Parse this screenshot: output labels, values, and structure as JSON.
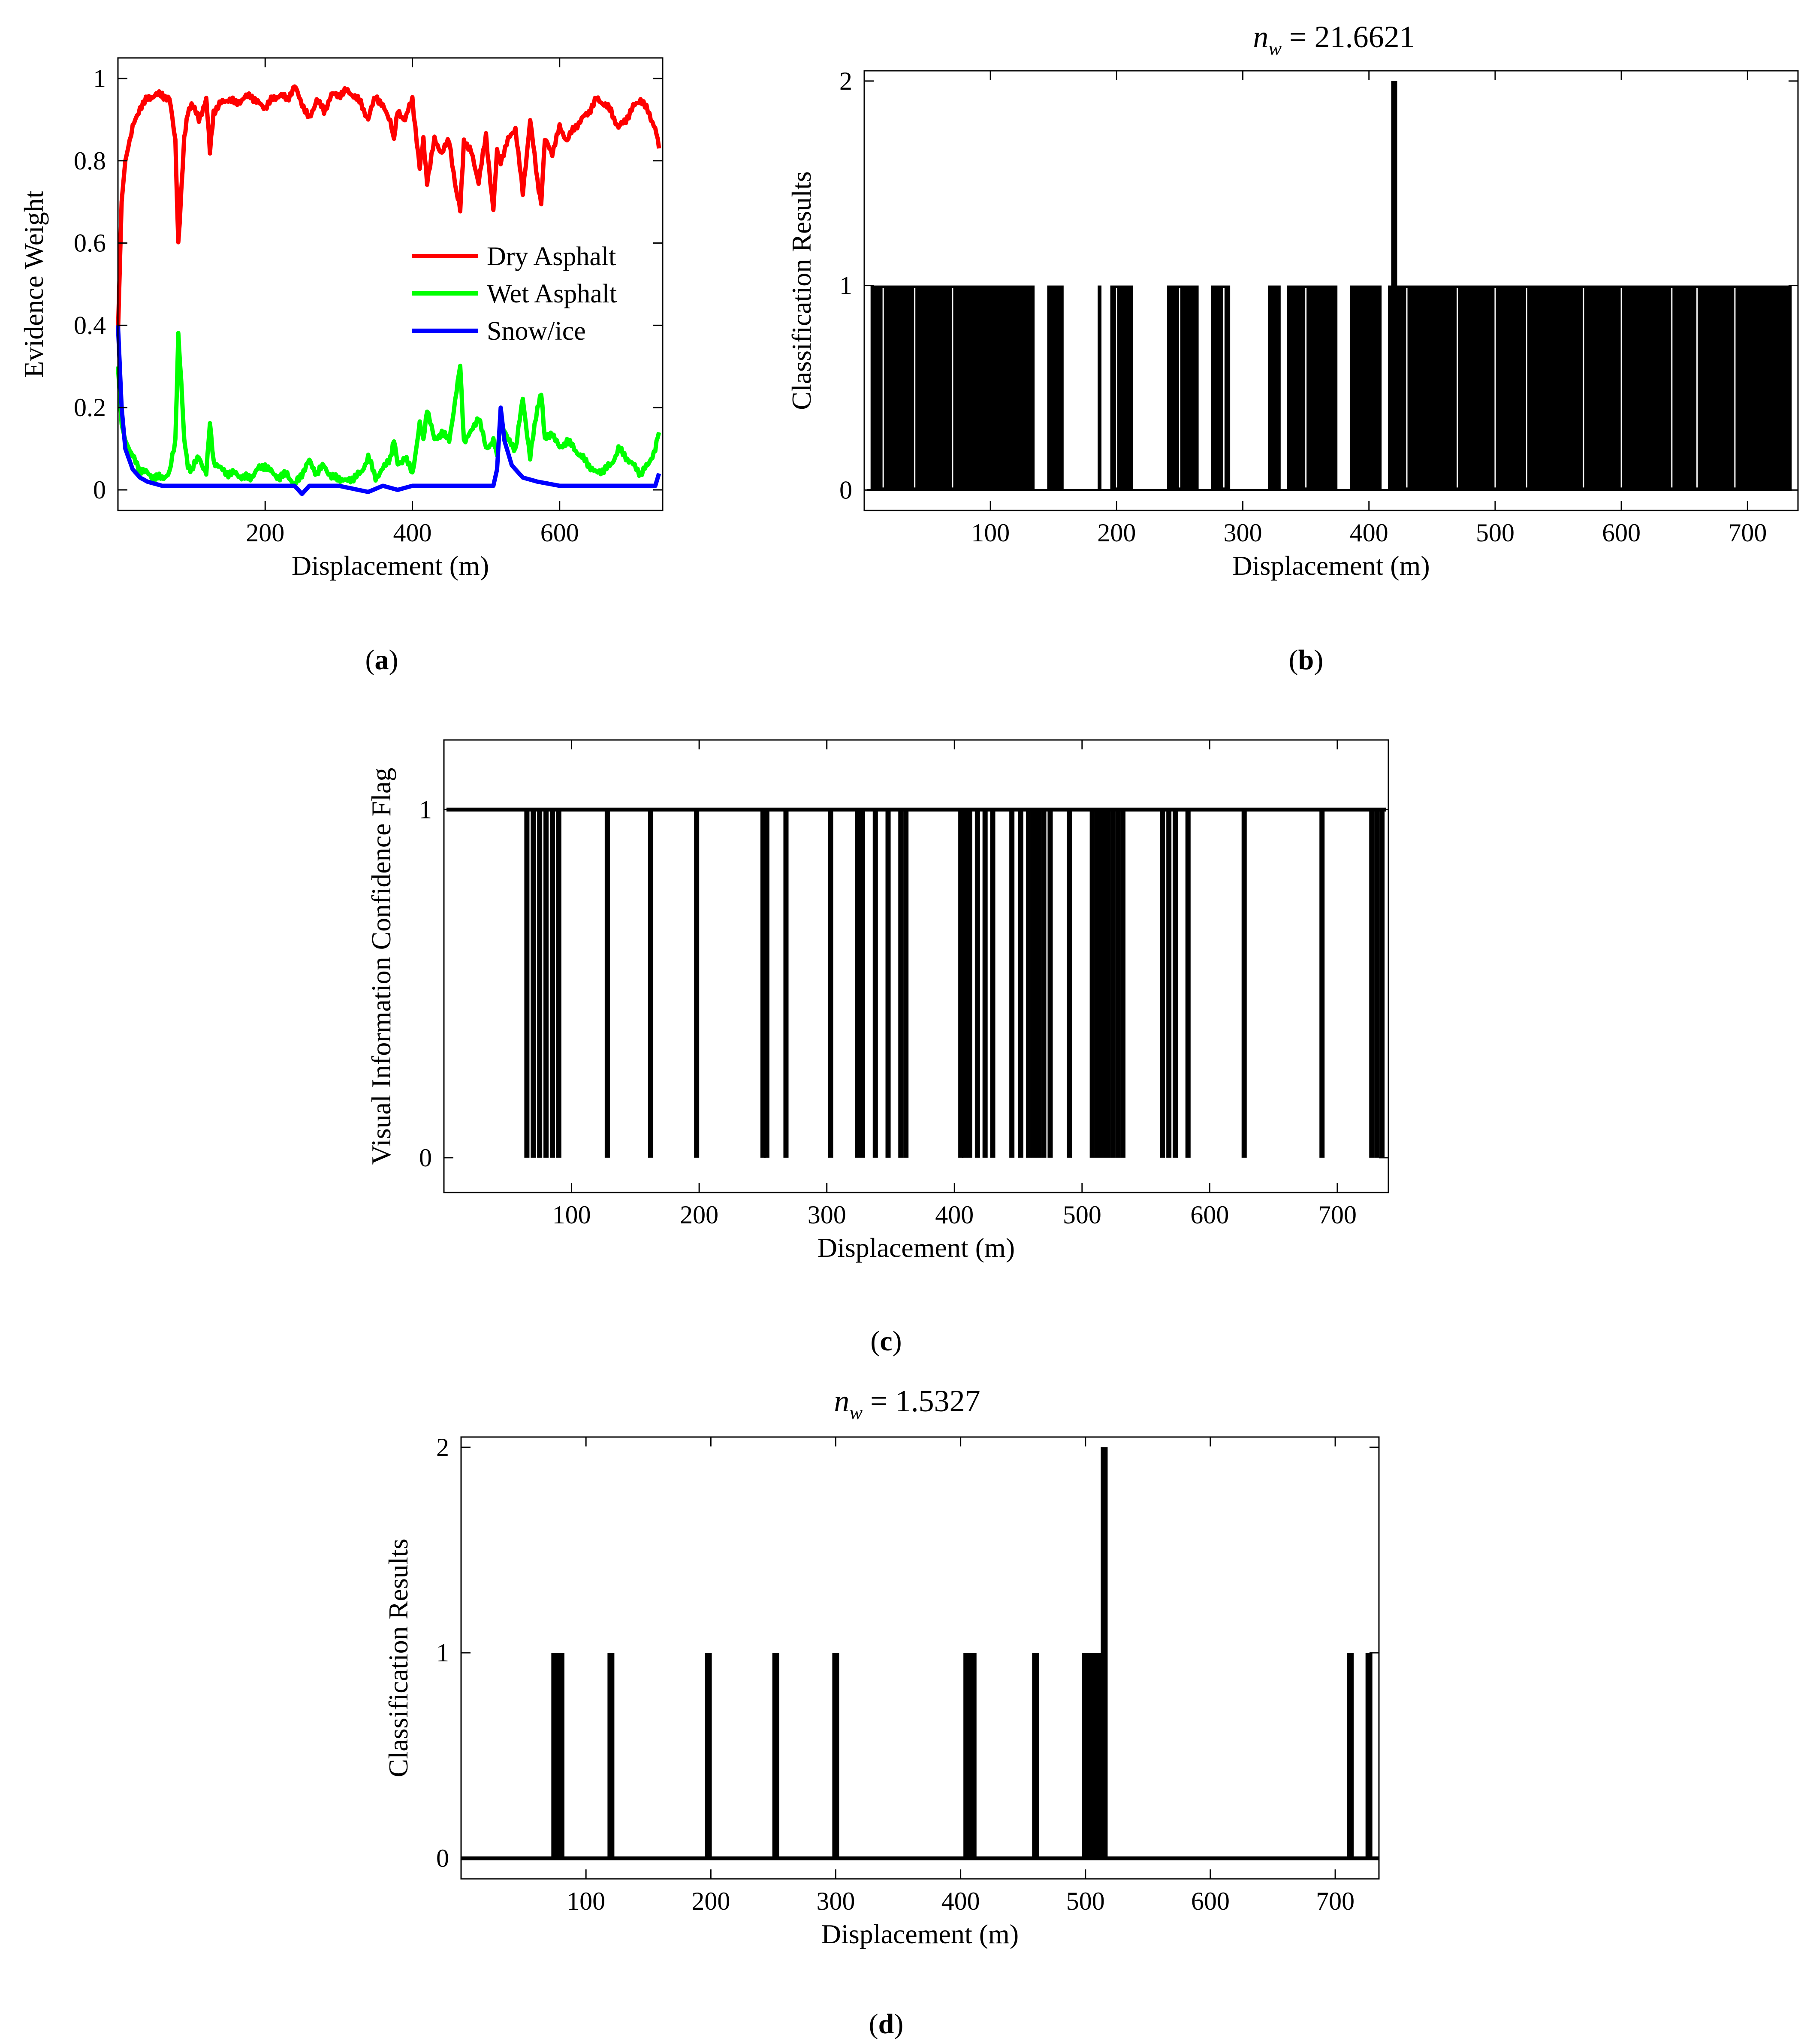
{
  "chart_data": [
    {
      "id": "a",
      "type": "line",
      "panel_label": "a",
      "title": "",
      "xlabel": "Displacement (m)",
      "ylabel": "Evidence Weight",
      "xlim": [
        0,
        740
      ],
      "ylim": [
        -0.05,
        1.05
      ],
      "xticks": [
        200,
        400,
        600
      ],
      "yticks": [
        0,
        0.2,
        0.4,
        0.6,
        0.8,
        1
      ],
      "ytick_labels": [
        "0",
        "0.2",
        "0.4",
        "0.6",
        "0.8",
        "1"
      ],
      "legend_position": "center-right",
      "series": [
        {
          "name": "Dry Asphalt",
          "color": "#ff0000",
          "x": [
            0,
            5,
            10,
            20,
            30,
            40,
            50,
            60,
            70,
            78,
            82,
            86,
            90,
            95,
            100,
            110,
            120,
            125,
            130,
            140,
            150,
            160,
            170,
            180,
            190,
            200,
            210,
            220,
            230,
            240,
            250,
            260,
            270,
            280,
            290,
            300,
            310,
            320,
            330,
            340,
            350,
            360,
            370,
            375,
            380,
            390,
            400,
            410,
            415,
            420,
            430,
            440,
            450,
            460,
            465,
            470,
            480,
            490,
            500,
            510,
            515,
            520,
            530,
            540,
            550,
            560,
            570,
            575,
            580,
            590,
            600,
            610,
            620,
            630,
            640,
            650,
            660,
            670,
            680,
            690,
            700,
            710,
            720,
            730,
            735
          ],
          "values": [
            0.38,
            0.7,
            0.8,
            0.88,
            0.93,
            0.95,
            0.96,
            0.96,
            0.95,
            0.85,
            0.6,
            0.72,
            0.85,
            0.92,
            0.94,
            0.9,
            0.95,
            0.82,
            0.92,
            0.94,
            0.95,
            0.94,
            0.95,
            0.96,
            0.94,
            0.93,
            0.95,
            0.96,
            0.95,
            0.98,
            0.94,
            0.9,
            0.95,
            0.92,
            0.96,
            0.96,
            0.97,
            0.96,
            0.94,
            0.9,
            0.96,
            0.93,
            0.9,
            0.85,
            0.92,
            0.9,
            0.95,
            0.78,
            0.85,
            0.75,
            0.85,
            0.82,
            0.85,
            0.72,
            0.68,
            0.85,
            0.82,
            0.75,
            0.86,
            0.68,
            0.82,
            0.8,
            0.85,
            0.88,
            0.72,
            0.9,
            0.75,
            0.7,
            0.85,
            0.82,
            0.88,
            0.85,
            0.88,
            0.9,
            0.92,
            0.95,
            0.94,
            0.92,
            0.88,
            0.9,
            0.93,
            0.95,
            0.92,
            0.88,
            0.83
          ]
        },
        {
          "name": "Wet Asphalt",
          "color": "#00ff00",
          "x": [
            0,
            5,
            10,
            20,
            30,
            40,
            50,
            60,
            70,
            78,
            82,
            86,
            90,
            95,
            100,
            110,
            120,
            125,
            130,
            140,
            150,
            160,
            170,
            180,
            190,
            200,
            210,
            220,
            230,
            240,
            250,
            260,
            270,
            280,
            290,
            300,
            310,
            320,
            330,
            340,
            350,
            360,
            370,
            375,
            380,
            390,
            400,
            410,
            415,
            420,
            430,
            440,
            450,
            460,
            465,
            470,
            480,
            490,
            500,
            510,
            515,
            520,
            530,
            540,
            550,
            560,
            570,
            575,
            580,
            590,
            600,
            610,
            620,
            630,
            640,
            650,
            660,
            670,
            680,
            690,
            700,
            710,
            720,
            730,
            735
          ],
          "values": [
            0.3,
            0.16,
            0.12,
            0.08,
            0.05,
            0.04,
            0.03,
            0.03,
            0.04,
            0.12,
            0.38,
            0.26,
            0.12,
            0.06,
            0.05,
            0.08,
            0.04,
            0.16,
            0.07,
            0.05,
            0.04,
            0.04,
            0.03,
            0.03,
            0.05,
            0.06,
            0.04,
            0.03,
            0.04,
            0.01,
            0.04,
            0.07,
            0.04,
            0.06,
            0.03,
            0.03,
            0.02,
            0.03,
            0.04,
            0.08,
            0.03,
            0.05,
            0.08,
            0.12,
            0.06,
            0.08,
            0.04,
            0.16,
            0.12,
            0.2,
            0.12,
            0.14,
            0.12,
            0.24,
            0.3,
            0.12,
            0.14,
            0.18,
            0.1,
            0.12,
            0.08,
            0.17,
            0.12,
            0.1,
            0.22,
            0.08,
            0.2,
            0.24,
            0.12,
            0.14,
            0.1,
            0.12,
            0.1,
            0.08,
            0.06,
            0.04,
            0.05,
            0.06,
            0.1,
            0.08,
            0.06,
            0.04,
            0.06,
            0.1,
            0.14
          ]
        },
        {
          "name": "Snow/ice",
          "color": "#0000ff",
          "x": [
            0,
            5,
            10,
            20,
            30,
            40,
            50,
            60,
            80,
            100,
            150,
            200,
            240,
            250,
            260,
            300,
            340,
            360,
            380,
            400,
            450,
            500,
            510,
            515,
            520,
            525,
            535,
            550,
            570,
            600,
            650,
            700,
            730,
            735
          ],
          "values": [
            0.4,
            0.2,
            0.1,
            0.05,
            0.03,
            0.02,
            0.015,
            0.01,
            0.01,
            0.01,
            0.01,
            0.01,
            0.01,
            -0.01,
            0.01,
            0.01,
            -0.005,
            0.01,
            0.0,
            0.01,
            0.01,
            0.01,
            0.01,
            0.05,
            0.2,
            0.12,
            0.06,
            0.03,
            0.02,
            0.01,
            0.01,
            0.01,
            0.01,
            0.04
          ]
        }
      ]
    },
    {
      "id": "b",
      "type": "bar",
      "panel_label": "b",
      "title": "n_w = 21.6621",
      "title_var": "n",
      "title_sub": "w",
      "title_rest": " = 21.6621",
      "xlabel": "Displacement (m)",
      "ylabel": "Classification Results",
      "xlim": [
        0,
        740
      ],
      "ylim": [
        -0.1,
        2.05
      ],
      "xticks": [
        100,
        200,
        300,
        400,
        500,
        600,
        700
      ],
      "yticks": [
        0,
        1,
        2
      ],
      "baseline_segments_y0": [
        [
          0,
          145
        ],
        [
          155,
          185
        ],
        [
          190,
          205
        ],
        [
          215,
          240
        ],
        [
          265,
          280
        ],
        [
          290,
          320
        ],
        [
          325,
          330
        ]
      ],
      "dense_segments_y1": [
        [
          5,
          135
        ],
        [
          145,
          158
        ],
        [
          185,
          188
        ],
        [
          195,
          213
        ],
        [
          240,
          265
        ],
        [
          275,
          290
        ],
        [
          320,
          330
        ],
        [
          335,
          375
        ],
        [
          385,
          410
        ],
        [
          415,
          735
        ]
      ],
      "values_y2_x": [
        420
      ],
      "gaps": [
        15,
        40,
        70,
        140,
        200,
        250,
        285,
        350,
        380,
        430,
        470,
        500,
        525,
        570,
        600,
        640,
        660,
        690
      ]
    },
    {
      "id": "c",
      "type": "bar",
      "panel_label": "c",
      "title": "",
      "xlabel": "Displacement (m)",
      "ylabel": "Visual Information Confidence Flag",
      "xlim": [
        0,
        740
      ],
      "ylim": [
        -0.1,
        1.2
      ],
      "xticks": [
        100,
        200,
        300,
        400,
        500,
        600,
        700
      ],
      "yticks": [
        0,
        1
      ],
      "zero_dips_x": [
        65,
        70,
        75,
        80,
        85,
        90,
        128,
        162,
        198,
        250,
        253,
        268,
        303,
        324,
        328,
        338,
        348,
        358,
        362,
        405,
        408,
        412,
        418,
        424,
        430,
        445,
        452,
        458,
        462,
        466,
        470,
        475,
        490,
        508,
        512,
        516,
        520,
        524,
        528,
        532,
        563,
        568,
        573,
        583,
        627,
        688,
        727,
        731,
        735
      ]
    },
    {
      "id": "d",
      "type": "bar",
      "panel_label": "d",
      "title": "n_w = 1.5327",
      "title_var": "n",
      "title_sub": "w",
      "title_rest": " = 1.5327",
      "xlabel": "Displacement (m)",
      "ylabel": "Classification Results",
      "xlim": [
        0,
        735
      ],
      "ylim": [
        -0.1,
        2.05
      ],
      "xticks": [
        100,
        200,
        300,
        400,
        500,
        600,
        700
      ],
      "yticks": [
        0,
        1,
        2
      ],
      "spikes": [
        {
          "x": 75,
          "value": 1
        },
        {
          "x": 80,
          "value": 1
        },
        {
          "x": 120,
          "value": 1
        },
        {
          "x": 198,
          "value": 1
        },
        {
          "x": 252,
          "value": 1
        },
        {
          "x": 300,
          "value": 1
        },
        {
          "x": 405,
          "value": 1
        },
        {
          "x": 410,
          "value": 1
        },
        {
          "x": 460,
          "value": 1
        },
        {
          "x": 500,
          "value": 1
        },
        {
          "x": 505,
          "value": 1
        },
        {
          "x": 510,
          "value": 1
        },
        {
          "x": 515,
          "value": 2
        },
        {
          "x": 712,
          "value": 1
        },
        {
          "x": 727,
          "value": 1
        }
      ]
    }
  ]
}
